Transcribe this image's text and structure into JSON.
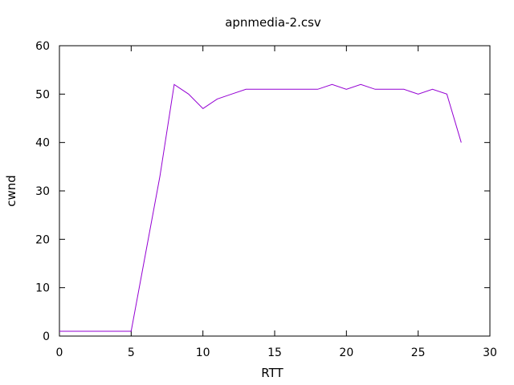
{
  "chart_data": {
    "type": "line",
    "title": "apnmedia-2.csv",
    "xlabel": "RTT",
    "ylabel": "cwnd",
    "xlim": [
      0,
      30
    ],
    "ylim": [
      0,
      60
    ],
    "xticks": [
      0,
      5,
      10,
      15,
      20,
      25,
      30
    ],
    "yticks": [
      0,
      10,
      20,
      30,
      40,
      50,
      60
    ],
    "grid": false,
    "legend": "none",
    "series": [
      {
        "color": "#9400d3",
        "x": [
          0,
          1,
          2,
          3,
          4,
          5,
          6,
          7,
          8,
          9,
          10,
          11,
          12,
          13,
          14,
          15,
          16,
          17,
          18,
          19,
          20,
          21,
          22,
          23,
          24,
          25,
          26,
          27,
          28
        ],
        "y": [
          1,
          1,
          1,
          1,
          1,
          1,
          17,
          33,
          52,
          50,
          47,
          49,
          50,
          51,
          51,
          51,
          51,
          51,
          51,
          52,
          51,
          52,
          51,
          51,
          51,
          50,
          51,
          50,
          40
        ]
      }
    ]
  }
}
